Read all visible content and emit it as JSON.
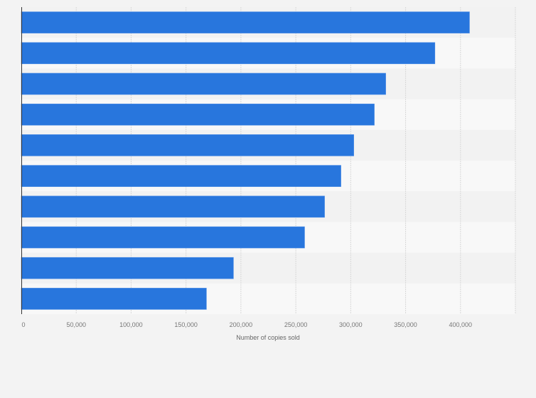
{
  "chart_data": {
    "type": "bar",
    "orientation": "horizontal",
    "title": "",
    "xlabel": "Number of copies sold",
    "ylabel": "",
    "categories": [
      "",
      "",
      "",
      "",
      "",
      "",
      "",
      "",
      "",
      ""
    ],
    "values": [
      408200,
      376700,
      331900,
      321500,
      302800,
      291100,
      276200,
      258000,
      193200,
      168600
    ],
    "xlim": [
      0,
      450000
    ],
    "ticks": [
      0,
      50000,
      100000,
      150000,
      200000,
      250000,
      300000,
      350000,
      400000
    ],
    "tick_labels": [
      "0",
      "50,000",
      "100,000",
      "150,000",
      "200,000",
      "250,000",
      "300,000",
      "350,000",
      "400,000"
    ],
    "grid": true,
    "bar_color": "#2876dd"
  }
}
